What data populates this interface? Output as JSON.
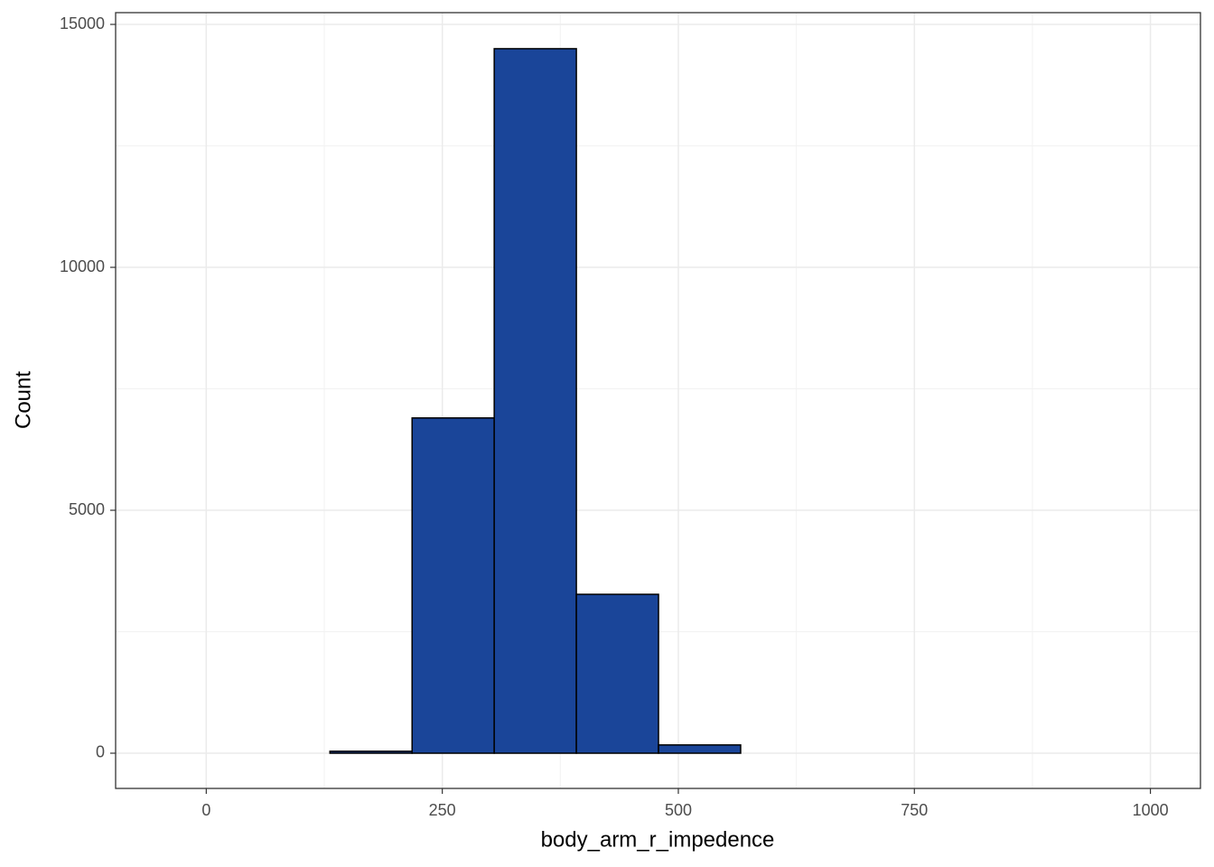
{
  "chart_data": {
    "type": "histogram",
    "xlabel": "body_arm_r_impedence",
    "ylabel": "Count",
    "bins": [
      -43,
      44,
      131,
      218,
      305,
      392,
      479,
      566,
      653,
      740,
      827,
      914,
      1001
    ],
    "values": [
      0,
      0,
      40,
      6900,
      14500,
      3270,
      170,
      0,
      0,
      0,
      0,
      0
    ],
    "color": "#1a4599",
    "edgecolor": "#000000",
    "xlim": [
      -96,
      1053
    ],
    "ylim": [
      -725,
      15242
    ],
    "xticks": [
      0,
      250,
      500,
      750,
      1000
    ],
    "yticks": [
      0,
      5000,
      10000,
      15000
    ],
    "xminor": [
      125,
      375,
      625,
      875
    ],
    "yminor": [
      2500,
      7500,
      12500
    ],
    "grid": true
  }
}
